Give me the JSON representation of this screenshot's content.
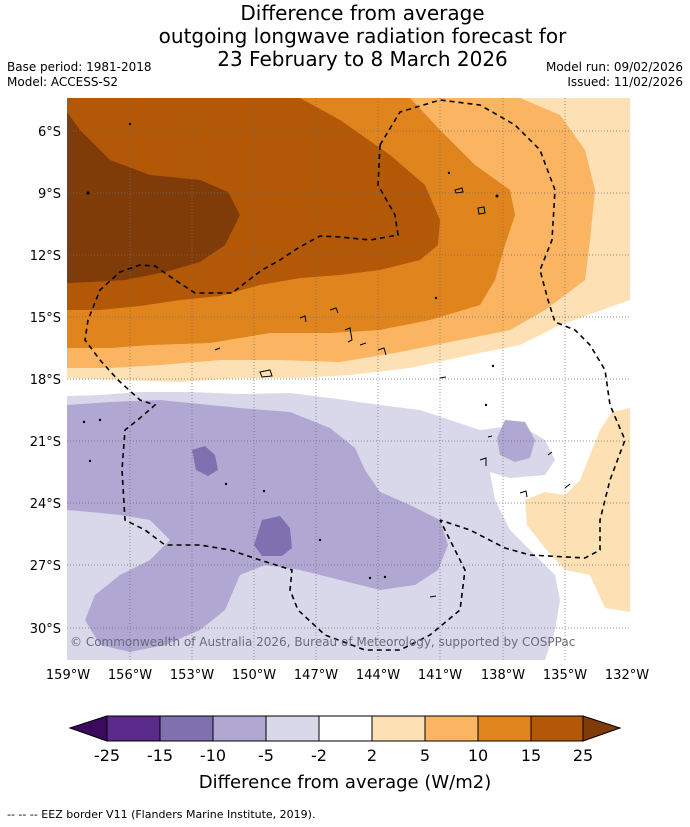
{
  "title": {
    "line1": "Difference from average",
    "line2": "outgoing longwave radiation forecast for",
    "line3": "23 February to 8 March 2026"
  },
  "meta": {
    "base_period": "Base period: 1981-2018",
    "model": "Model: ACCESS-S2",
    "model_run": "Model run: 09/02/2026",
    "issued": "Issued: 11/02/2026"
  },
  "map": {
    "lat_labels": [
      "6°S",
      "9°S",
      "12°S",
      "15°S",
      "18°S",
      "21°S",
      "24°S",
      "27°S",
      "30°S"
    ],
    "lon_labels": [
      "159°W",
      "156°W",
      "153°W",
      "150°W",
      "147°W",
      "144°W",
      "141°W",
      "138°W",
      "135°W",
      "132°W"
    ],
    "copyright": "© Commonwealth of Australia 2026, Bureau of Meteorology, supported by COSPPac"
  },
  "legend": {
    "ticks": [
      "-25",
      "-15",
      "-10",
      "-5",
      "-2",
      "2",
      "5",
      "10",
      "15",
      "25"
    ],
    "label": "Difference from average (W/m2)",
    "colors": [
      "#3b0a5e",
      "#5a2a8a",
      "#8070b0",
      "#b0a8d2",
      "#d9d8ea",
      "#ffffff",
      "#fde0b4",
      "#fbb461",
      "#e0841e",
      "#b35806",
      "#7f3b08"
    ]
  },
  "footer": "--  --  -- EEZ border V11 (Flanders Marine Institute, 2019)."
}
